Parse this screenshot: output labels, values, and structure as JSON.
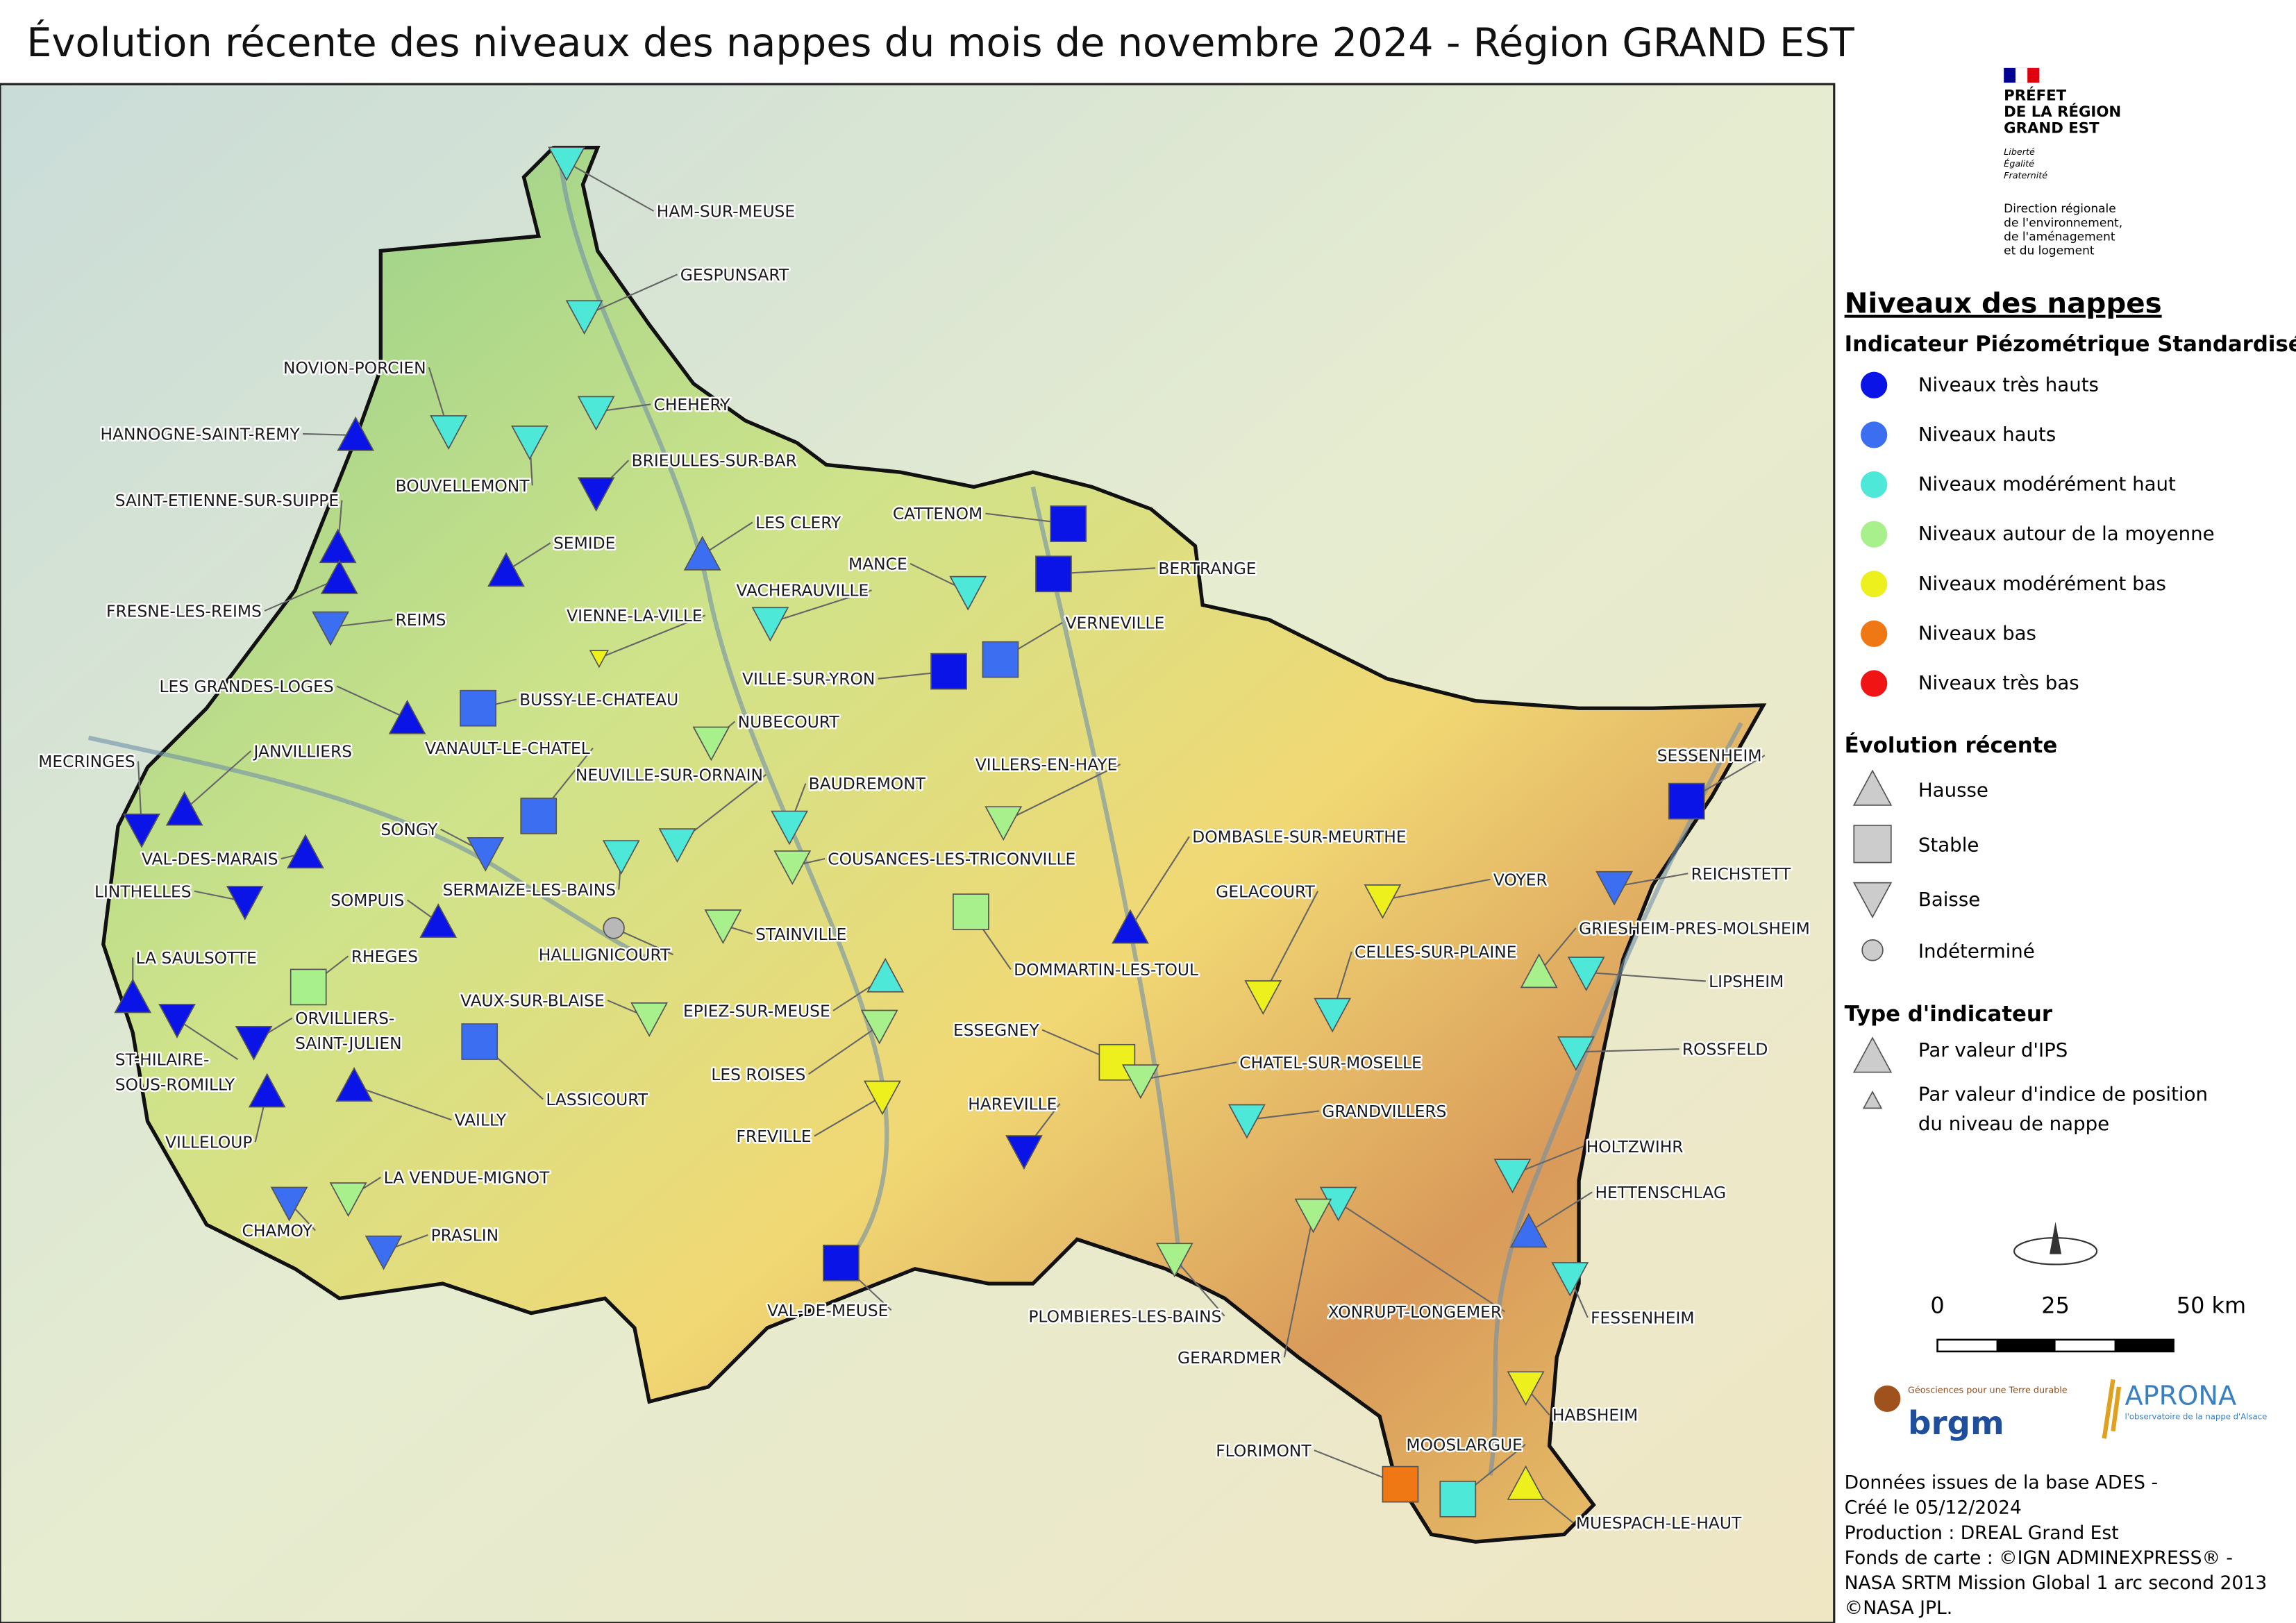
{
  "title": "Évolution récente des niveaux des nappes du mois de novembre 2024 - Région GRAND EST",
  "header": {
    "prefet": [
      "PRÉFET",
      "DE LA RÉGION",
      "GRAND EST"
    ],
    "motto": [
      "Liberté",
      "Égalité",
      "Fraternité"
    ],
    "direction": [
      "Direction régionale",
      "de l'environnement,",
      "de l'aménagement",
      "et du logement"
    ]
  },
  "legend": {
    "title": "Niveaux des nappes",
    "subtitle": "Indicateur Piézométrique Standardisé",
    "levels": [
      "Niveaux très hauts",
      "Niveaux hauts",
      "Niveaux modérément haut",
      "Niveaux autour de la moyenne",
      "Niveaux modérément bas",
      "Niveaux bas",
      "Niveaux très bas"
    ],
    "trend_title": "Évolution récente",
    "trends": [
      "Hausse",
      "Stable",
      "Baisse",
      "Indéterminé"
    ],
    "type_title": "Type d'indicateur",
    "types": [
      [
        "Par valeur d'IPS"
      ],
      [
        "Par valeur d'indice de position",
        "du niveau de nappe"
      ]
    ]
  },
  "scale": {
    "labels": [
      "0",
      "25",
      "50  km"
    ]
  },
  "logos": {
    "brgm": "brgm",
    "brgm_tagline": "Géosciences pour une Terre durable",
    "aprona": "APRONA",
    "aprona_tagline": "l'observatoire de la nappe d'Alsace"
  },
  "credits": [
    "Données issues de la base ADES -",
    "Créé le 05/12/2024",
    "Production : DREAL Grand Est",
    "Fonds de carte : ©IGN ADMINEXPRESS® -",
    "NASA SRTM Mission Global 1 arc second 2013",
    "©NASA JPL."
  ],
  "stations": [
    [
      "HAM-SUR-MEUSE"
    ],
    [
      "GESPUNSART"
    ],
    [
      "NOVION-PORCIEN"
    ],
    [
      "CHEHERY"
    ],
    [
      "HANNOGNE-SAINT-REMY"
    ],
    [
      "BOUVELLEMONT"
    ],
    [
      "BRIEULLES-SUR-BAR"
    ],
    [
      "SAINT-ETIENNE-SUR-SUIPPE"
    ],
    [
      "SEMIDE"
    ],
    [
      "LES CLERY"
    ],
    [
      "CATTENOM"
    ],
    [
      "MANCE"
    ],
    [
      "BERTRANGE"
    ],
    [
      "FRESNE-LES-REIMS"
    ],
    [
      "REIMS"
    ],
    [
      "VIENNE-LA-VILLE"
    ],
    [
      "VACHERAUVILLE"
    ],
    [
      "VERNEVILLE"
    ],
    [
      "VILLE-SUR-YRON"
    ],
    [
      "LES GRANDES-LOGES"
    ],
    [
      "BUSSY-LE-CHATEAU"
    ],
    [
      "NUBECOURT"
    ],
    [
      "VANAULT-LE-CHATEL"
    ],
    [
      "JANVILLIERS"
    ],
    [
      "MECRINGES"
    ],
    [
      "NEUVILLE-SUR-ORNAIN"
    ],
    [
      "BAUDREMONT"
    ],
    [
      "VILLERS-EN-HAYE"
    ],
    [
      "SONGY"
    ],
    [
      "VAL-DES-MARAIS"
    ],
    [
      "COUSANCES-LES-TRICONVILLE"
    ],
    [
      "DOMBASLE-SUR-MEURTHE"
    ],
    [
      "SERMAIZE-LES-BAINS"
    ],
    [
      "LINTHELLES"
    ],
    [
      "SOMPUIS"
    ],
    [
      "GELACOURT"
    ],
    [
      "VOYER"
    ],
    [
      "REICHSTETT"
    ],
    [
      "STAINVILLE"
    ],
    [
      "HALLIGNICOURT"
    ],
    [
      "GRIESHEIM-PRES-MOLSHEIM"
    ],
    [
      "CELLES-SUR-PLAINE"
    ],
    [
      "LIPSHEIM"
    ],
    [
      "DOMMARTIN-LES-TOUL"
    ],
    [
      "LA SAULSOTTE"
    ],
    [
      "RHEGES"
    ],
    [
      "EPIEZ-SUR-MEUSE"
    ],
    [
      "VAUX-SUR-BLAISE"
    ],
    [
      "ORVILLIERS-",
      "SAINT-JULIEN"
    ],
    [
      "ESSEGNEY"
    ],
    [
      "ROSSFELD"
    ],
    [
      "ST-HILAIRE-",
      "SOUS-ROMILLY"
    ],
    [
      "CHATEL-SUR-MOSELLE"
    ],
    [
      "LES ROISES"
    ],
    [
      "LASSICOURT"
    ],
    [
      "VAILLY"
    ],
    [
      "FREVILLE"
    ],
    [
      "VILLELOUP"
    ],
    [
      "HAREVILLE"
    ],
    [
      "GRANDVILLERS"
    ],
    [
      "HOLTZWIHR"
    ],
    [
      "LA VENDUE-MIGNOT"
    ],
    [
      "HETTENSCHLAG"
    ],
    [
      "CHAMOY"
    ],
    [
      "PRASLIN"
    ],
    [
      "FESSENHEIM"
    ],
    [
      "VAL-DE-MEUSE"
    ],
    [
      "PLOMBIERES-LES-BAINS"
    ],
    [
      "XONRUPT-LONGEMER"
    ],
    [
      "GERARDMER"
    ],
    [
      "HABSHEIM"
    ],
    [
      "FLORIMONT"
    ],
    [
      "MOOSLARGUE"
    ],
    [
      "MUESPACH-LE-HAUT"
    ],
    [
      "SESSENHEIM"
    ]
  ]
}
